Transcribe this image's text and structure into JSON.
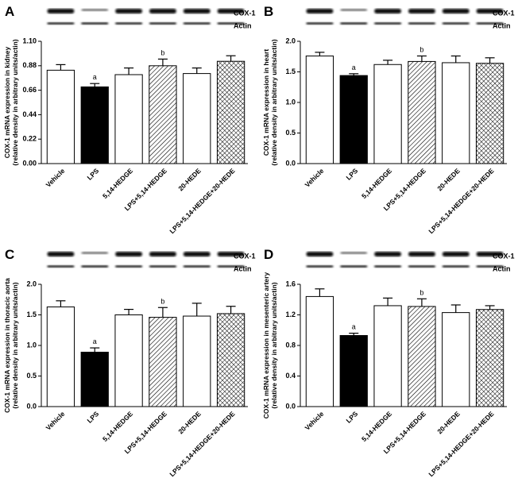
{
  "chart_data": [
    {
      "type": "bar",
      "panel": "A",
      "ylabel": [
        "COX-1 mRNA expression in kidney",
        "(relative density in arbitrary units/actin)"
      ],
      "blot_labels": [
        "COX-1",
        "Actin"
      ],
      "categories": [
        "Vehicle",
        "LPS",
        "5,14-HEDGE",
        "LPS+5,14-HEDGE",
        "20-HEDE",
        "LPS+5,14-HEDGE+20-HEDE"
      ],
      "values": [
        0.84,
        0.69,
        0.8,
        0.88,
        0.81,
        0.92
      ],
      "errors": [
        0.05,
        0.03,
        0.06,
        0.06,
        0.05,
        0.05
      ],
      "letters": [
        null,
        "a",
        null,
        "b",
        null,
        null
      ],
      "fills": [
        "white",
        "black",
        "white",
        "hatch",
        "white",
        "crosshatch"
      ],
      "ylim": [
        0,
        1.1
      ],
      "yticks": [
        {
          "value": 0,
          "label": "0.00"
        },
        0.22,
        0.44,
        0.66,
        0.88,
        {
          "value": 1.1,
          "label": "1.10"
        }
      ]
    },
    {
      "type": "bar",
      "panel": "B",
      "ylabel": [
        "COX-1 mRNA expression in heart",
        "(relative density in arbitrary units/actin)"
      ],
      "blot_labels": [
        "COX-1",
        "Actin"
      ],
      "categories": [
        "Vehicle",
        "LPS",
        "5,14-HEDGE",
        "LPS+5,14-HEDGE",
        "20-HEDE",
        "LPS+5,14-HEDGE+20-HEDE"
      ],
      "values": [
        1.76,
        1.44,
        1.62,
        1.67,
        1.65,
        1.64
      ],
      "errors": [
        0.06,
        0.03,
        0.07,
        0.09,
        0.11,
        0.09
      ],
      "letters": [
        null,
        "a",
        null,
        "b",
        null,
        null
      ],
      "fills": [
        "white",
        "black",
        "white",
        "hatch",
        "white",
        "crosshatch"
      ],
      "ylim": [
        0,
        2.0
      ],
      "yticks": [
        {
          "value": 0,
          "label": "0.0"
        },
        0.5,
        {
          "value": 1,
          "label": "1.0"
        },
        1.5,
        {
          "value": 2,
          "label": "2.0"
        }
      ]
    },
    {
      "type": "bar",
      "panel": "C",
      "ylabel": [
        "COX-1 mRNA expression in thoracic aorta",
        "(relative density in arbitrary units/actin)"
      ],
      "blot_labels": [
        "COX-1",
        "Actin"
      ],
      "categories": [
        "Vehicle",
        "LPS",
        "5,14-HEDGE",
        "LPS+5,14-HEDGE",
        "20-HEDE",
        "LPS+5,14-HEDGE+20-HEDE"
      ],
      "values": [
        1.63,
        0.89,
        1.5,
        1.46,
        1.48,
        1.52
      ],
      "errors": [
        0.1,
        0.07,
        0.09,
        0.16,
        0.21,
        0.12
      ],
      "letters": [
        null,
        "a",
        null,
        "b",
        null,
        null
      ],
      "fills": [
        "white",
        "black",
        "white",
        "hatch",
        "white",
        "crosshatch"
      ],
      "ylim": [
        0,
        2.0
      ],
      "yticks": [
        {
          "value": 0,
          "label": "0.0"
        },
        0.5,
        {
          "value": 1,
          "label": "1.0"
        },
        1.5,
        {
          "value": 2,
          "label": "2.0"
        }
      ]
    },
    {
      "type": "bar",
      "panel": "D",
      "ylabel": [
        "COX-1 mRNA expression in mesenteric artery",
        "(relative density in arbitrary units/actin)"
      ],
      "blot_labels": [
        "COX-1",
        "Actin"
      ],
      "categories": [
        "Vehicle",
        "LPS",
        "5,14-HEDGE",
        "LPS+5,14-HEDGE",
        "20-HEDE",
        "LPS+5,14-HEDGE+20-HEDE"
      ],
      "values": [
        1.44,
        0.93,
        1.32,
        1.31,
        1.23,
        1.27
      ],
      "errors": [
        0.1,
        0.03,
        0.1,
        0.1,
        0.1,
        0.05
      ],
      "letters": [
        null,
        "a",
        null,
        "b",
        null,
        null
      ],
      "fills": [
        "white",
        "black",
        "white",
        "hatch",
        "white",
        "crosshatch"
      ],
      "ylim": [
        0,
        1.6
      ],
      "yticks": [
        {
          "value": 0,
          "label": "0.0"
        },
        0.4,
        0.8,
        1.2,
        1.6
      ]
    }
  ]
}
